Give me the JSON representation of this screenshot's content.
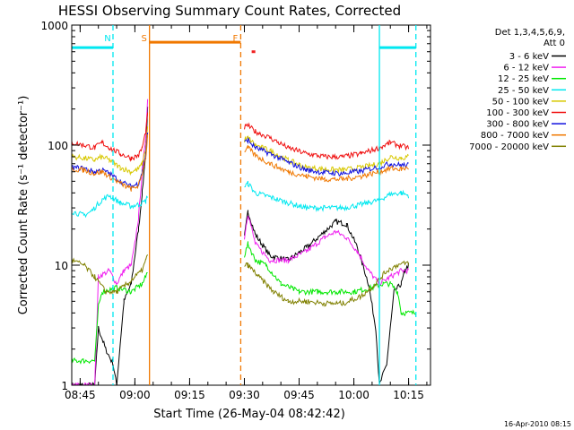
{
  "chart_data": {
    "type": "line",
    "title": "HESSI Observing Summary Count Rates, Corrected",
    "xlabel": "Start Time (26-May-04 08:42:42)",
    "ylabel": "Corrected Count Rate (s⁻¹ detector⁻¹)",
    "yscale": "log",
    "ylim": [
      1,
      1000
    ],
    "xlim": [
      "08:42:42",
      "10:21:00"
    ],
    "x_ticks": [
      "08:45",
      "09:00",
      "09:15",
      "09:30",
      "09:45",
      "10:00",
      "10:15"
    ],
    "y_ticks": [
      "1",
      "10",
      "100",
      "1000"
    ],
    "grid": false,
    "legend_position": "right",
    "legend_header": [
      "Det 1,3,4,5,6,9,",
      "Att 0"
    ],
    "timestamp": "16-Apr-2010 08:15",
    "markers": [
      {
        "label": "N",
        "time": "08:54",
        "color": "#00e8f0",
        "style": "dashed"
      },
      {
        "label": "S",
        "time": "09:04",
        "color": "#f07800",
        "style": "solid"
      },
      {
        "label": "F",
        "time": "09:29",
        "color": "#f07800",
        "style": "dashed"
      },
      {
        "time": "10:07",
        "color": "#00e8f0",
        "style": "solid"
      },
      {
        "time": "10:17",
        "color": "#00e8f0",
        "style": "dashed"
      }
    ],
    "flag_bars": [
      {
        "color": "#00e8f0",
        "y": 650,
        "start": "08:42:42",
        "end": "08:54"
      },
      {
        "color": "#f07800",
        "y": 720,
        "start": "09:04",
        "end": "09:29"
      },
      {
        "color": "#00e8f0",
        "y": 650,
        "start": "10:07",
        "end": "10:17"
      },
      {
        "color": "#f02020",
        "y": 600,
        "start": "09:32",
        "end": "09:33"
      }
    ],
    "series": [
      {
        "name": "3 - 6 keV",
        "color": "#000000",
        "points": [
          [
            "08:42:42",
            1
          ],
          [
            "08:49",
            1
          ],
          [
            "08:50",
            3
          ],
          [
            "08:52",
            2
          ],
          [
            "08:54",
            1.5
          ],
          [
            "08:55",
            1
          ],
          [
            "08:57",
            5
          ],
          [
            "08:59",
            7
          ],
          [
            "09:00",
            12
          ],
          [
            "09:01",
            20
          ],
          [
            "09:02",
            40
          ],
          [
            "09:03",
            90
          ],
          [
            "09:03:30",
            200
          ],
          [
            null,
            null
          ],
          [
            "09:30",
            17
          ],
          [
            "09:31",
            28
          ],
          [
            "09:33",
            18
          ],
          [
            "09:37",
            12
          ],
          [
            "09:42",
            11
          ],
          [
            "09:47",
            14
          ],
          [
            "09:52",
            19
          ],
          [
            "09:55",
            23
          ],
          [
            "09:58",
            22
          ],
          [
            "10:01",
            14
          ],
          [
            "10:04",
            7
          ],
          [
            "10:06",
            3
          ],
          [
            "10:07",
            1
          ],
          [
            "10:09",
            1.5
          ],
          [
            "10:11",
            6
          ],
          [
            "10:13",
            7
          ],
          [
            "10:14",
            9
          ],
          [
            "10:15",
            10
          ]
        ]
      },
      {
        "name": "6 - 12 keV",
        "color": "#f020f0",
        "points": [
          [
            "08:42:42",
            1
          ],
          [
            "08:49",
            1
          ],
          [
            "08:50",
            8
          ],
          [
            "08:53",
            9
          ],
          [
            "08:55",
            7
          ],
          [
            "08:57",
            9
          ],
          [
            "08:59",
            10
          ],
          [
            "09:00",
            15
          ],
          [
            "09:01",
            25
          ],
          [
            "09:02",
            60
          ],
          [
            "09:03",
            120
          ],
          [
            "09:03:30",
            240
          ],
          [
            null,
            null
          ],
          [
            "09:30",
            17
          ],
          [
            "09:31",
            27
          ],
          [
            "09:33",
            15
          ],
          [
            "09:37",
            11
          ],
          [
            "09:42",
            11
          ],
          [
            "09:47",
            13
          ],
          [
            "09:52",
            17
          ],
          [
            "09:55",
            19
          ],
          [
            "09:58",
            17
          ],
          [
            "10:01",
            13
          ],
          [
            "10:04",
            9
          ],
          [
            "10:07",
            7
          ],
          [
            "10:10",
            8
          ],
          [
            "10:13",
            9
          ],
          [
            "10:15",
            9
          ]
        ]
      },
      {
        "name": "12 - 25 keV",
        "color": "#00e800",
        "points": [
          [
            "08:42:42",
            1.6
          ],
          [
            "08:49",
            1.6
          ],
          [
            "08:50",
            4.5
          ],
          [
            "08:51",
            6
          ],
          [
            "08:55",
            6.5
          ],
          [
            "08:59",
            6
          ],
          [
            "09:02",
            7
          ],
          [
            "09:03",
            8
          ],
          [
            "09:03:30",
            9
          ],
          [
            null,
            null
          ],
          [
            "09:30",
            12
          ],
          [
            "09:31",
            15
          ],
          [
            "09:33",
            11
          ],
          [
            "09:36",
            10
          ],
          [
            "09:40",
            7
          ],
          [
            "09:45",
            6
          ],
          [
            "09:50",
            6
          ],
          [
            "09:55",
            6
          ],
          [
            "10:00",
            6
          ],
          [
            "10:05",
            6.5
          ],
          [
            "10:08",
            7
          ],
          [
            "10:10",
            7
          ],
          [
            "10:12",
            6
          ],
          [
            "10:13",
            4
          ],
          [
            "10:17",
            4
          ]
        ]
      },
      {
        "name": "25 - 50 keV",
        "color": "#00e8f0",
        "points": [
          [
            "08:42:42",
            28
          ],
          [
            "08:46",
            26
          ],
          [
            "08:48",
            28
          ],
          [
            "08:51",
            35
          ],
          [
            "08:53",
            38
          ],
          [
            "08:56",
            33
          ],
          [
            "08:59",
            31
          ],
          [
            "09:01",
            32
          ],
          [
            "09:03",
            34
          ],
          [
            "09:03:30",
            38
          ],
          [
            null,
            null
          ],
          [
            "09:30",
            45
          ],
          [
            "09:31",
            48
          ],
          [
            "09:33",
            40
          ],
          [
            "09:37",
            37
          ],
          [
            "09:42",
            33
          ],
          [
            "09:47",
            30
          ],
          [
            "09:52",
            30
          ],
          [
            "09:57",
            30
          ],
          [
            "10:02",
            32
          ],
          [
            "10:07",
            35
          ],
          [
            "10:10",
            39
          ],
          [
            "10:13",
            40
          ],
          [
            "10:15",
            38
          ]
        ]
      },
      {
        "name": "50 - 100 keV",
        "color": "#d8c800",
        "points": [
          [
            "08:42:42",
            80
          ],
          [
            "08:46",
            78
          ],
          [
            "08:49",
            75
          ],
          [
            "08:51",
            80
          ],
          [
            "08:53",
            75
          ],
          [
            "08:56",
            65
          ],
          [
            "08:59",
            60
          ],
          [
            "09:01",
            63
          ],
          [
            "09:02",
            70
          ],
          [
            "09:03",
            95
          ],
          [
            "09:03:30",
            140
          ],
          [
            null,
            null
          ],
          [
            "09:30",
            110
          ],
          [
            "09:31",
            115
          ],
          [
            "09:33",
            100
          ],
          [
            "09:37",
            90
          ],
          [
            "09:42",
            75
          ],
          [
            "09:47",
            65
          ],
          [
            "09:52",
            63
          ],
          [
            "09:57",
            62
          ],
          [
            "10:02",
            65
          ],
          [
            "10:07",
            70
          ],
          [
            "10:10",
            80
          ],
          [
            "10:13",
            78
          ],
          [
            "10:15",
            80
          ]
        ]
      },
      {
        "name": "100 - 300 keV",
        "color": "#f01010",
        "points": [
          [
            "08:42:42",
            105
          ],
          [
            "08:46",
            100
          ],
          [
            "08:49",
            95
          ],
          [
            "08:51",
            105
          ],
          [
            "08:53",
            95
          ],
          [
            "08:56",
            85
          ],
          [
            "08:59",
            78
          ],
          [
            "09:01",
            82
          ],
          [
            "09:02",
            95
          ],
          [
            "09:03",
            130
          ],
          [
            "09:03:30",
            180
          ],
          [
            null,
            null
          ],
          [
            "09:30",
            140
          ],
          [
            "09:31",
            145
          ],
          [
            "09:33",
            130
          ],
          [
            "09:37",
            115
          ],
          [
            "09:42",
            95
          ],
          [
            "09:47",
            85
          ],
          [
            "09:52",
            80
          ],
          [
            "09:57",
            80
          ],
          [
            "10:02",
            85
          ],
          [
            "10:07",
            95
          ],
          [
            "10:10",
            105
          ],
          [
            "10:13",
            98
          ],
          [
            "10:15",
            95
          ]
        ]
      },
      {
        "name": "300 - 800 keV",
        "color": "#1010e0",
        "points": [
          [
            "08:42:42",
            65
          ],
          [
            "08:46",
            64
          ],
          [
            "08:49",
            60
          ],
          [
            "08:51",
            62
          ],
          [
            "08:53",
            58
          ],
          [
            "08:56",
            50
          ],
          [
            "08:59",
            45
          ],
          [
            "09:01",
            48
          ],
          [
            "09:02",
            60
          ],
          [
            "09:03",
            85
          ],
          [
            "09:03:30",
            130
          ],
          [
            null,
            null
          ],
          [
            "09:30",
            105
          ],
          [
            "09:31",
            110
          ],
          [
            "09:33",
            95
          ],
          [
            "09:37",
            85
          ],
          [
            "09:42",
            72
          ],
          [
            "09:47",
            62
          ],
          [
            "09:52",
            59
          ],
          [
            "09:57",
            58
          ],
          [
            "10:02",
            61
          ],
          [
            "10:07",
            66
          ],
          [
            "10:10",
            70
          ],
          [
            "10:13",
            68
          ],
          [
            "10:15",
            68
          ]
        ]
      },
      {
        "name": "800 - 7000 keV",
        "color": "#f07800",
        "points": [
          [
            "08:42:42",
            63
          ],
          [
            "08:46",
            62
          ],
          [
            "08:49",
            58
          ],
          [
            "08:51",
            60
          ],
          [
            "08:53",
            55
          ],
          [
            "08:56",
            48
          ],
          [
            "08:59",
            43
          ],
          [
            "09:01",
            46
          ],
          [
            "09:02",
            58
          ],
          [
            "09:03",
            80
          ],
          [
            "09:03:30",
            120
          ],
          [
            null,
            null
          ],
          [
            "09:30",
            90
          ],
          [
            "09:31",
            95
          ],
          [
            "09:33",
            82
          ],
          [
            "09:37",
            70
          ],
          [
            "09:42",
            60
          ],
          [
            "09:47",
            55
          ],
          [
            "09:52",
            52
          ],
          [
            "09:57",
            52
          ],
          [
            "10:02",
            55
          ],
          [
            "10:07",
            60
          ],
          [
            "10:10",
            64
          ],
          [
            "10:13",
            63
          ],
          [
            "10:15",
            65
          ]
        ]
      },
      {
        "name": "7000 - 20000 keV",
        "color": "#808000",
        "points": [
          [
            "08:42:42",
            11
          ],
          [
            "08:46",
            10
          ],
          [
            "08:49",
            8
          ],
          [
            "08:52",
            6
          ],
          [
            "08:55",
            6
          ],
          [
            "08:58",
            7
          ],
          [
            "09:00",
            8
          ],
          [
            "09:02",
            9
          ],
          [
            "09:03",
            11
          ],
          [
            "09:03:30",
            12
          ],
          [
            null,
            null
          ],
          [
            "09:30",
            10
          ],
          [
            "09:31",
            10
          ],
          [
            "09:34",
            8
          ],
          [
            "09:38",
            6
          ],
          [
            "09:42",
            5
          ],
          [
            "09:47",
            5
          ],
          [
            "09:52",
            4.8
          ],
          [
            "09:57",
            4.8
          ],
          [
            "10:02",
            5.5
          ],
          [
            "10:06",
            7
          ],
          [
            "10:09",
            9
          ],
          [
            "10:12",
            10
          ],
          [
            "10:15",
            10.5
          ]
        ]
      }
    ]
  }
}
